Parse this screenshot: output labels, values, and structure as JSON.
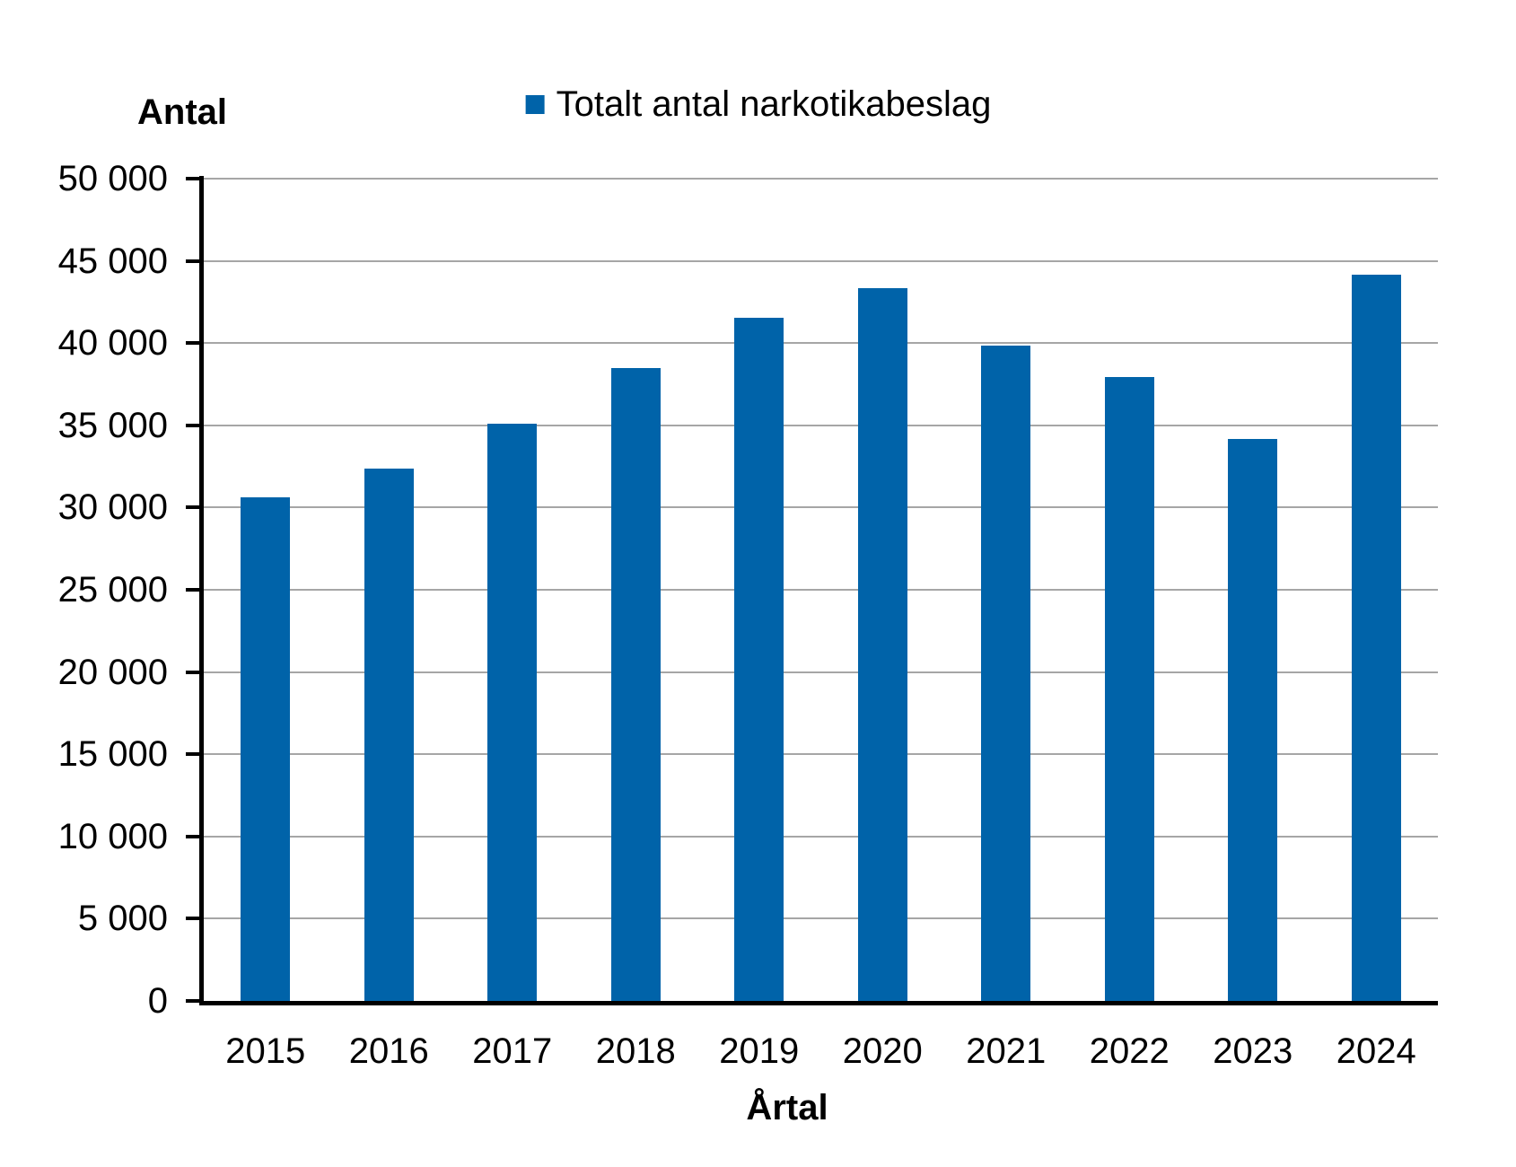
{
  "chart_data": {
    "type": "bar",
    "legend_label": "Totalt antal narkotikabeslag",
    "ylabel": "Antal",
    "xlabel": "Årtal",
    "categories": [
      "2015",
      "2016",
      "2017",
      "2018",
      "2019",
      "2020",
      "2021",
      "2022",
      "2023",
      "2024"
    ],
    "values": [
      30600,
      32350,
      35100,
      38500,
      41550,
      43350,
      39850,
      37950,
      34150,
      44150
    ],
    "ylim": [
      0,
      50000
    ],
    "ytick_step": 5000,
    "ytick_labels": [
      "0",
      "5 000",
      "10 000",
      "15 000",
      "20 000",
      "25 000",
      "30 000",
      "35 000",
      "40 000",
      "45 000",
      "50 000"
    ],
    "grid": true,
    "legend_position": "top",
    "bar_color": "#0063A9",
    "gridline_color": "#A6A6A6",
    "axis_color": "#000000",
    "text_color": "#000000"
  }
}
